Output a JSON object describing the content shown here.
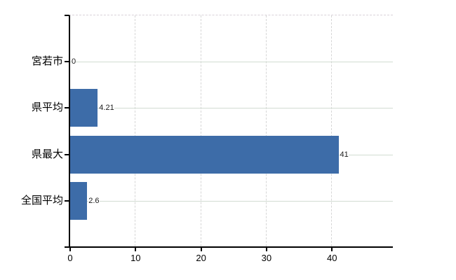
{
  "chart_data": {
    "type": "bar",
    "orientation": "horizontal",
    "title": "",
    "xlabel": "",
    "ylabel": "",
    "categories": [
      "宮若市",
      "県平均",
      "県最大",
      "全国平均"
    ],
    "values": [
      0,
      4.21,
      41,
      2.6
    ],
    "value_labels": [
      "0",
      "4.21",
      "41",
      "2.6"
    ],
    "x_ticks": [
      0,
      10,
      20,
      30,
      40
    ],
    "xlim": [
      0,
      49.3
    ],
    "grid": true,
    "legend": false,
    "colors": {
      "bar": "#3d6ca8",
      "axis": "#000000",
      "h_gridline": "#d2dcd2",
      "v_gridline": "#d6d6d6",
      "top_border": "#d9d2d9",
      "value_label": "#1b1b1b",
      "background": "#ffffff"
    }
  }
}
